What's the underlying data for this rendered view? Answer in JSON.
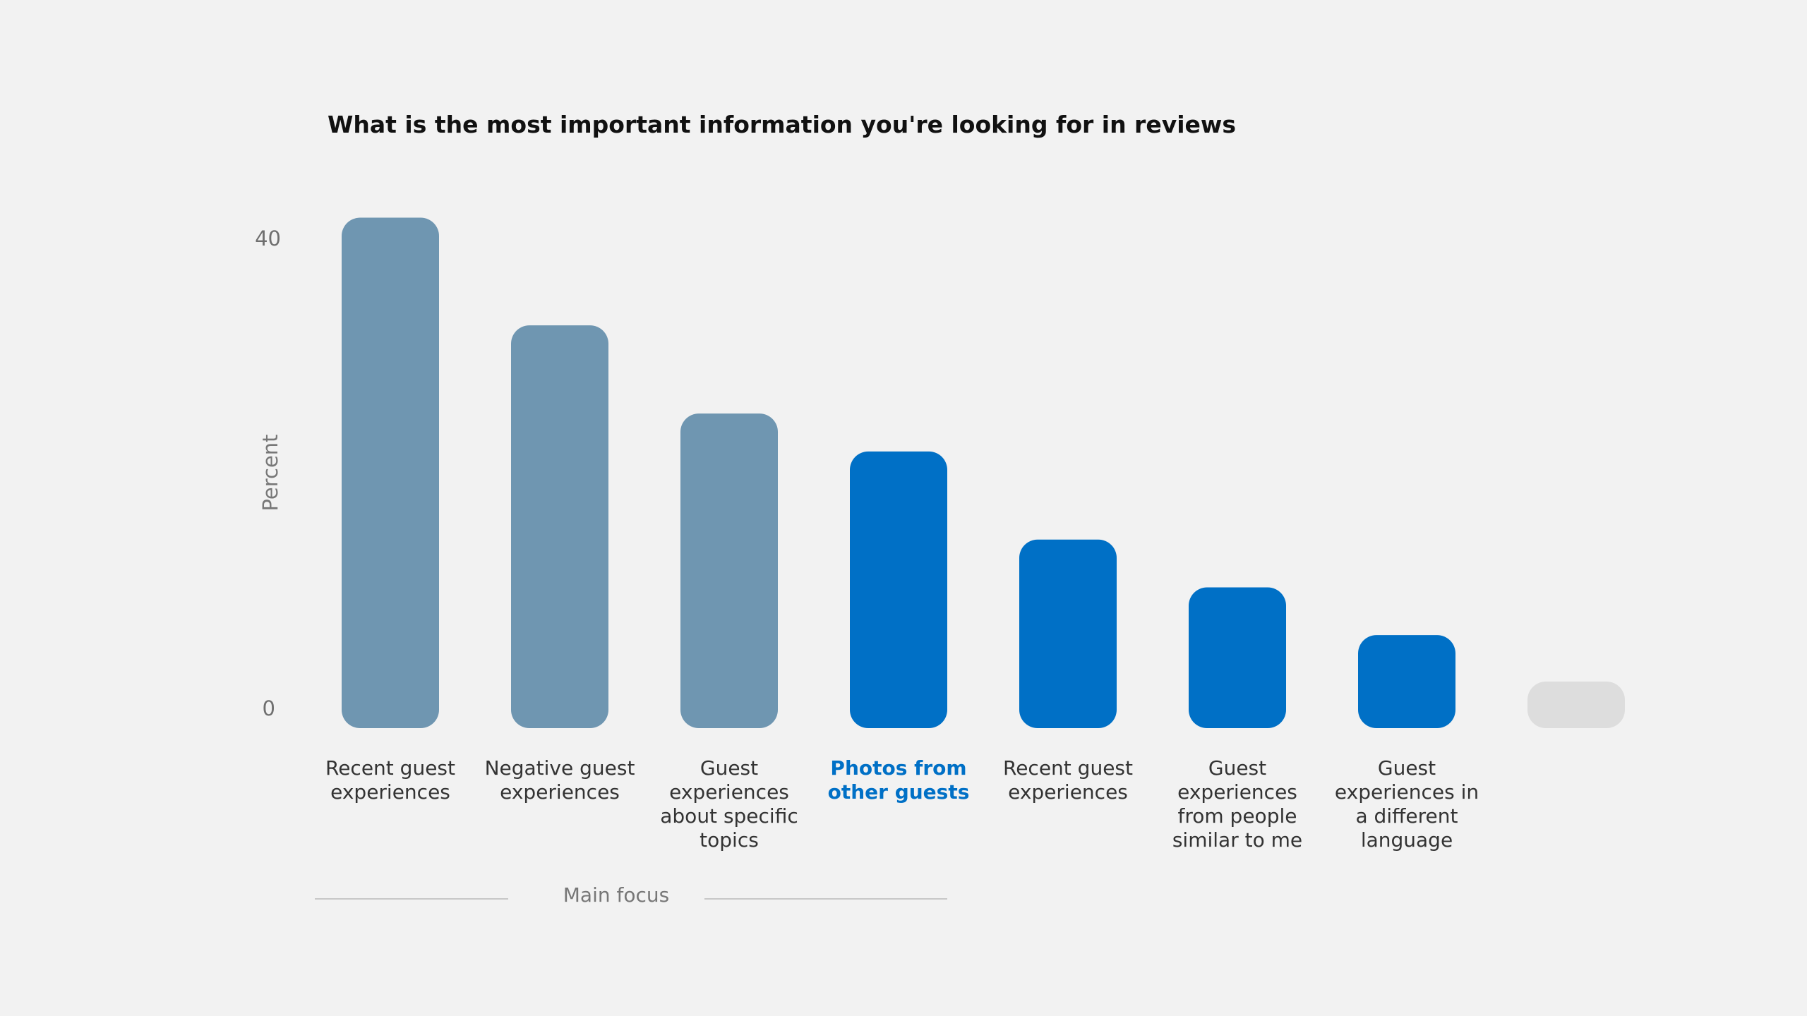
{
  "chart_data": {
    "type": "bar",
    "title": "What is the most important information you're looking for in reviews",
    "ylabel": "Percent",
    "xlabel": "",
    "ylim": [
      0,
      40
    ],
    "yticks": [
      "0",
      "40"
    ],
    "grid": false,
    "categories": [
      "Recent guest\nexperiences",
      "Negative guest\nexperiences",
      "Guest\nexperiences\nabout specific\ntopics",
      "Photos from\nother guests",
      "Recent guest\nexperiences",
      "Guest\nexperiences\nfrom people\nsimilar to me",
      "Guest\nexperiences in\na different\nlanguage",
      ""
    ],
    "values": [
      41.7,
      32.9,
      25.7,
      22.6,
      15.4,
      11.5,
      7.6,
      2
    ],
    "colors": [
      "#6f96b1",
      "#6f96b1",
      "#6f96b1",
      "#0070c6",
      "#0070c6",
      "#0070c6",
      "#0070c6",
      "#dddddd"
    ],
    "highlight_index": 3,
    "highlight_label_color": "#0070c6",
    "group_annotation": "Main focus"
  }
}
